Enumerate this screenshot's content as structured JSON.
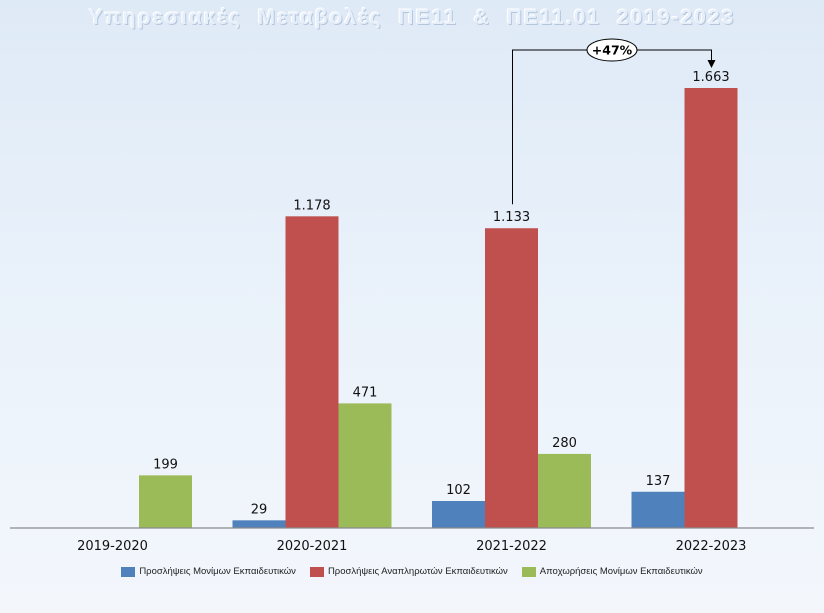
{
  "chart_data": {
    "type": "bar",
    "title": "Υπηρεσιακές  Μεταβολές  ΠΕ11 & ΠΕ11.01   2019-2023",
    "categories": [
      "2019-2020",
      "2020-2021",
      "2021-2022",
      "2022-2023"
    ],
    "series": [
      {
        "name": "Προσλήψεις Μονίμων Εκπαιδευτικών",
        "color": "#4f81bd",
        "values": [
          null,
          29,
          102,
          137
        ],
        "labels": [
          "",
          "29",
          "102",
          "137"
        ]
      },
      {
        "name": "Προσλήψεις Αναπληρωτών  Εκπαιδευτικών",
        "color": "#c0504d",
        "values": [
          null,
          1178,
          1133,
          1663
        ],
        "labels": [
          "",
          "1.178",
          "1.133",
          "1.663"
        ]
      },
      {
        "name": "Αποχωρήσεις Μονίμων Εκπαιδευτικών",
        "color": "#9bbb59",
        "values": [
          199,
          471,
          280,
          null
        ],
        "labels": [
          "199",
          "471",
          "280",
          ""
        ]
      }
    ],
    "ylim": [
      0,
      1800
    ],
    "grid": false,
    "legend": "bottom",
    "annotation": {
      "text": "+47%",
      "from_category": "2021-2022",
      "to_category": "2022-2023",
      "series": "Προσλήψεις Αναπληρωτών  Εκπαιδευτικών"
    }
  }
}
